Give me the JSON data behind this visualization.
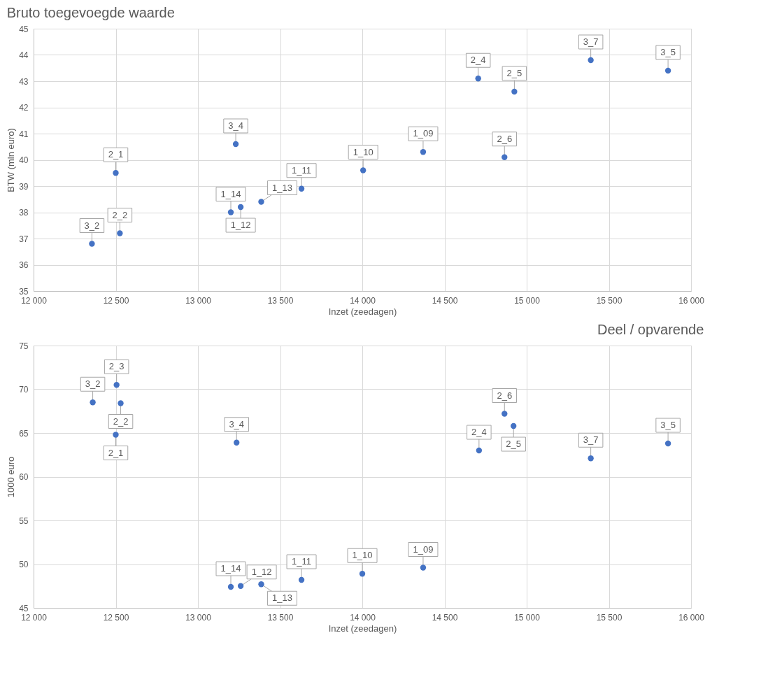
{
  "chart_data": [
    {
      "type": "scatter",
      "title": "Bruto toegevoegde waarde",
      "xlabel": "Inzet (zeedagen)",
      "ylabel": "BTW (mln euro)",
      "marker": "circle",
      "grid": true,
      "x": [
        12500,
        12525,
        12355,
        13230,
        13200,
        13260,
        13385,
        13630,
        14005,
        14370,
        14705,
        14925,
        14865,
        15390,
        15860
      ],
      "series": [
        {
          "color": "#4472c4",
          "values": [
            39.5,
            37.2,
            36.8,
            40.6,
            38.0,
            38.2,
            38.4,
            38.9,
            39.6,
            40.3,
            43.1,
            42.6,
            40.1,
            43.8,
            43.4
          ]
        }
      ],
      "xlim": [
        12000,
        16000
      ],
      "xticks": [
        {
          "value": 12000,
          "label": "12 000"
        },
        {
          "value": 12500,
          "label": "12 500"
        },
        {
          "value": 13000,
          "label": "13 000"
        },
        {
          "value": 13500,
          "label": "13 500"
        },
        {
          "value": 14000,
          "label": "14 000"
        },
        {
          "value": 14500,
          "label": "14 500"
        },
        {
          "value": 15000,
          "label": "15 000"
        },
        {
          "value": 15500,
          "label": "15 500"
        },
        {
          "value": 16000,
          "label": "16 000"
        }
      ],
      "ylim": [
        35,
        45
      ],
      "yticks": [
        35,
        36,
        37,
        38,
        39,
        40,
        41,
        42,
        43,
        44,
        45
      ],
      "annotations": [
        {
          "text": "2_1",
          "x": 12500,
          "y": 39.5
        },
        {
          "text": "2_2",
          "x": 12525,
          "y": 37.2
        },
        {
          "text": "3_2",
          "x": 12355,
          "y": 36.8
        },
        {
          "text": "3_4",
          "x": 13230,
          "y": 40.6
        },
        {
          "text": "1_14",
          "x": 13200,
          "y": 38.0
        },
        {
          "text": "1_12",
          "x": 13260,
          "y": 38.2
        },
        {
          "text": "1_13",
          "x": 13385,
          "y": 38.4
        },
        {
          "text": "1_11",
          "x": 13630,
          "y": 38.9
        },
        {
          "text": "1_10",
          "x": 14005,
          "y": 39.6
        },
        {
          "text": "1_09",
          "x": 14370,
          "y": 40.3
        },
        {
          "text": "2_4",
          "x": 14705,
          "y": 43.1
        },
        {
          "text": "2_5",
          "x": 14925,
          "y": 42.6
        },
        {
          "text": "2_6",
          "x": 14865,
          "y": 40.1
        },
        {
          "text": "3_7",
          "x": 15390,
          "y": 43.8
        },
        {
          "text": "3_5",
          "x": 15860,
          "y": 43.4
        }
      ]
    },
    {
      "type": "scatter",
      "title": "Deel / opvarende",
      "xlabel": "Inzet (zeedagen)",
      "ylabel": "1000 euro",
      "marker": "circle",
      "grid": true,
      "x": [
        12505,
        12360,
        12530,
        12500,
        13235,
        13200,
        13260,
        13385,
        13630,
        14000,
        14370,
        14710,
        14865,
        14920,
        15390,
        15860
      ],
      "series": [
        {
          "color": "#4472c4",
          "values": [
            70.5,
            68.5,
            68.4,
            64.8,
            63.9,
            47.4,
            47.5,
            47.7,
            48.2,
            48.9,
            49.6,
            63.0,
            67.2,
            65.8,
            62.1,
            63.8
          ]
        }
      ],
      "xlim": [
        12000,
        16000
      ],
      "xticks": [
        {
          "value": 12000,
          "label": "12 000"
        },
        {
          "value": 12500,
          "label": "12 500"
        },
        {
          "value": 13000,
          "label": "13 000"
        },
        {
          "value": 13500,
          "label": "13 500"
        },
        {
          "value": 14000,
          "label": "14 000"
        },
        {
          "value": 14500,
          "label": "14 500"
        },
        {
          "value": 15000,
          "label": "15 000"
        },
        {
          "value": 15500,
          "label": "15 500"
        },
        {
          "value": 16000,
          "label": "16 000"
        }
      ],
      "ylim": [
        45,
        75
      ],
      "yticks": [
        45,
        50,
        55,
        60,
        65,
        70,
        75
      ],
      "annotations": [
        {
          "text": "2_3",
          "x": 12505,
          "y": 70.5
        },
        {
          "text": "3_2",
          "x": 12360,
          "y": 68.5
        },
        {
          "text": "2_2",
          "x": 12530,
          "y": 68.4
        },
        {
          "text": "2_1",
          "x": 12500,
          "y": 64.8
        },
        {
          "text": "3_4",
          "x": 13235,
          "y": 63.9
        },
        {
          "text": "1_14",
          "x": 13200,
          "y": 47.4
        },
        {
          "text": "1_12",
          "x": 13260,
          "y": 47.5
        },
        {
          "text": "1_13",
          "x": 13385,
          "y": 47.7
        },
        {
          "text": "1_11",
          "x": 13630,
          "y": 48.2
        },
        {
          "text": "1_10",
          "x": 14000,
          "y": 48.9
        },
        {
          "text": "1_09",
          "x": 14370,
          "y": 49.6
        },
        {
          "text": "2_4",
          "x": 14710,
          "y": 63.0
        },
        {
          "text": "2_6",
          "x": 14865,
          "y": 67.2
        },
        {
          "text": "2_5",
          "x": 14920,
          "y": 65.8
        },
        {
          "text": "3_7",
          "x": 15390,
          "y": 62.1
        },
        {
          "text": "3_5",
          "x": 15860,
          "y": 63.8
        }
      ]
    }
  ]
}
